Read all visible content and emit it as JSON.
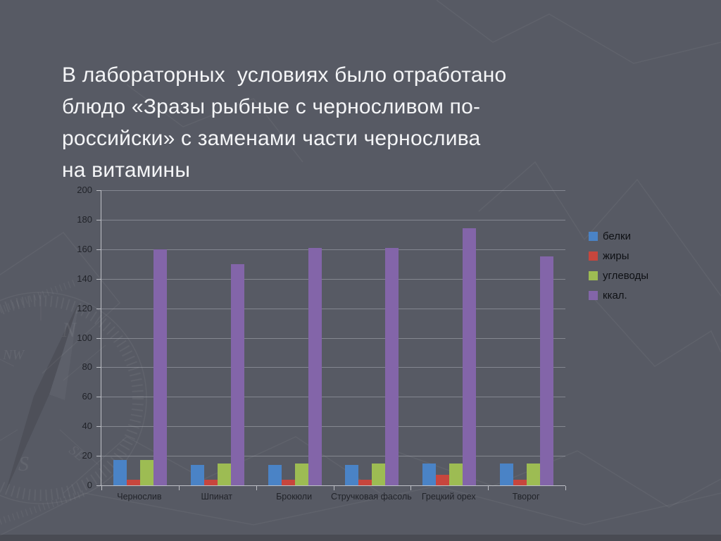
{
  "slide": {
    "title": "В лабораторных  условиях было отработано\nблюдо «Зразы рыбные с черносливом по-\nроссийски» с заменами части чернослива\nна витамины"
  },
  "colors": {
    "background": "#575a64",
    "title_text": "#f4f5f7",
    "axis": "#d0d2d7",
    "grid": "#c8cbd2",
    "tick_text": "#212329",
    "legend_text": "#0e1014"
  },
  "watermark": {
    "compass_letters": [
      "N",
      "NW",
      "SE",
      "S"
    ]
  },
  "chart_data": {
    "type": "bar",
    "title": "",
    "xlabel": "",
    "ylabel": "",
    "categories": [
      "Чернослив",
      "Шпинат",
      "Брокюли",
      "Стручковая фасоль",
      "Грецкий орех",
      "Творог"
    ],
    "series": [
      {
        "name": "белки",
        "color": "#4a83c6",
        "values": [
          17,
          14,
          14,
          14,
          15,
          15
        ]
      },
      {
        "name": "жиры",
        "color": "#c7463d",
        "values": [
          4,
          4,
          4,
          4,
          7,
          4
        ]
      },
      {
        "name": "углеводы",
        "color": "#9dbc53",
        "values": [
          17,
          15,
          15,
          15,
          15,
          15
        ]
      },
      {
        "name": "ккал.",
        "color": "#8365a9",
        "values": [
          160,
          150,
          161,
          161,
          174,
          155
        ]
      }
    ],
    "ylim": [
      0,
      200
    ],
    "ytick_step": 20,
    "grid": true,
    "legend_position": "right"
  }
}
